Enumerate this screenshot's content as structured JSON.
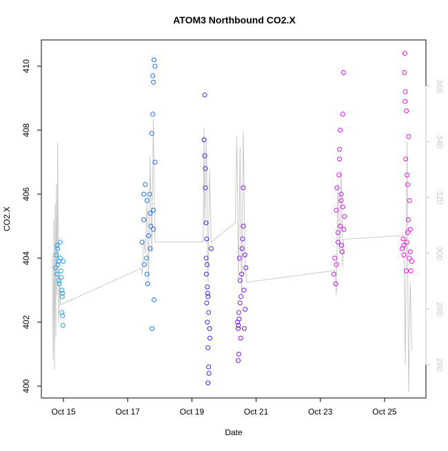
{
  "chart_data": {
    "type": "scatter",
    "title": "ATOM3 Northbound CO2.X",
    "xlabel": "Date",
    "ylabel": "CO2.X",
    "xlim": [
      14.31,
      26.29
    ],
    "ylim": [
      399.63,
      410.82
    ],
    "y2lim": [
      248.1,
      376.5
    ],
    "xticks": [
      {
        "value": 15,
        "label": "Oct 15"
      },
      {
        "value": 17,
        "label": "Oct 17"
      },
      {
        "value": 19,
        "label": "Oct 19"
      },
      {
        "value": 21,
        "label": "Oct 21"
      },
      {
        "value": 23,
        "label": "Oct 23"
      },
      {
        "value": 25,
        "label": "Oct 25"
      }
    ],
    "yticks": [
      400,
      402,
      404,
      406,
      408,
      410
    ],
    "y2ticks": [
      260,
      280,
      300,
      320,
      340,
      360
    ],
    "y2color": "#c8c8c8",
    "series": [
      {
        "color": "#1ea0f0",
        "x": [
          14.75,
          14.78,
          14.8,
          14.82,
          14.85,
          14.87,
          14.9,
          14.92,
          14.95,
          14.97,
          14.8,
          14.83,
          14.86,
          14.9,
          14.93,
          14.96,
          14.99,
          14.95,
          14.97,
          14.98
        ],
        "values": [
          403.7,
          404.1,
          403.5,
          404.3,
          403.9,
          403.2,
          404.5,
          403.6,
          403.0,
          402.9,
          404.4,
          403.8,
          403.3,
          404.0,
          403.4,
          402.8,
          403.9,
          402.3,
          402.2,
          401.9
        ]
      },
      {
        "color": "#1a6cf0",
        "x": [
          17.45,
          17.5,
          17.52,
          17.55,
          17.58,
          17.6,
          17.62,
          17.65,
          17.68,
          17.7,
          17.72,
          17.75,
          17.78,
          17.8,
          17.82,
          17.85,
          17.5,
          17.6,
          17.7,
          17.78,
          17.8,
          17.85,
          17.82,
          17.76,
          17.8
        ],
        "values": [
          404.5,
          405.2,
          403.8,
          406.3,
          404.0,
          405.8,
          403.2,
          404.7,
          406.0,
          404.3,
          405.0,
          407.9,
          408.5,
          404.9,
          410.2,
          410.0,
          406.0,
          403.5,
          405.4,
          409.7,
          409.5,
          407.0,
          402.7,
          401.8,
          405.5
        ]
      },
      {
        "color": "#3a1ef0",
        "x": [
          19.38,
          19.4,
          19.42,
          19.44,
          19.46,
          19.48,
          19.5,
          19.52,
          19.55,
          19.4,
          19.42,
          19.45,
          19.48,
          19.5,
          19.52,
          19.44,
          19.46,
          19.5,
          19.53,
          19.56,
          19.6,
          19.47,
          19.49
        ],
        "values": [
          407.7,
          407.2,
          406.8,
          405.1,
          404.6,
          403.1,
          402.8,
          402.3,
          401.8,
          409.1,
          406.2,
          403.5,
          402.0,
          401.2,
          400.6,
          404.0,
          402.6,
          400.1,
          400.4,
          401.5,
          404.3,
          403.8,
          402.9
        ]
      },
      {
        "color": "#7a10f0",
        "x": [
          20.42,
          20.44,
          20.46,
          20.48,
          20.5,
          20.52,
          20.55,
          20.58,
          20.6,
          20.62,
          20.65,
          20.68,
          20.45,
          20.47,
          20.5,
          20.53,
          20.56,
          20.6,
          20.63,
          20.66,
          20.44,
          20.46
        ],
        "values": [
          402.0,
          401.8,
          402.3,
          404.0,
          402.6,
          401.5,
          403.5,
          404.6,
          405.0,
          403.0,
          404.1,
          403.7,
          401.9,
          402.1,
          403.3,
          402.8,
          404.3,
          406.2,
          401.8,
          402.4,
          400.8,
          401.0
        ]
      },
      {
        "color": "#d010f0",
        "x": [
          23.42,
          23.45,
          23.48,
          23.5,
          23.52,
          23.55,
          23.58,
          23.6,
          23.62,
          23.65,
          23.68,
          23.7,
          23.72,
          23.75,
          23.5,
          23.55,
          23.6,
          23.65,
          23.7,
          23.73,
          23.62,
          23.66
        ],
        "values": [
          403.5,
          404.0,
          403.2,
          405.5,
          406.2,
          404.8,
          406.6,
          407.1,
          405.0,
          405.8,
          404.2,
          408.5,
          409.8,
          405.3,
          403.8,
          404.5,
          407.4,
          406.0,
          405.6,
          404.9,
          408.0,
          404.4
        ]
      },
      {
        "color": "#f010e0",
        "x": [
          25.55,
          25.58,
          25.6,
          25.62,
          25.65,
          25.68,
          25.7,
          25.72,
          25.75,
          25.78,
          25.8,
          25.82,
          25.85,
          25.6,
          25.63,
          25.66,
          25.7,
          25.74,
          25.77,
          25.8,
          25.64,
          25.68,
          25.72
        ],
        "values": [
          404.3,
          404.6,
          404.1,
          409.8,
          409.2,
          408.6,
          404.5,
          406.3,
          407.8,
          405.8,
          404.9,
          403.6,
          403.9,
          404.4,
          410.4,
          407.1,
          406.6,
          405.2,
          404.0,
          404.2,
          408.9,
          403.6,
          404.8
        ]
      },
      {
        "type": "line",
        "axis": "y2",
        "color": "#c8c8c8",
        "x": [
          14.65,
          14.68,
          14.7,
          14.72,
          14.74,
          14.76,
          14.78,
          14.8,
          14.82,
          14.85,
          14.88,
          14.9,
          17.42,
          17.45,
          17.5,
          17.55,
          17.6,
          17.65,
          17.7,
          17.75,
          17.8,
          17.85,
          19.35,
          19.38,
          19.4,
          19.45,
          19.5,
          19.55,
          19.6,
          20.35,
          20.4,
          20.45,
          20.5,
          20.55,
          20.6,
          20.65,
          20.7,
          23.45,
          23.5,
          23.55,
          23.6,
          23.65,
          23.7,
          23.72,
          25.6,
          25.65,
          25.7,
          25.72,
          25.75,
          25.8,
          25.85
        ],
        "values": [
          300,
          262,
          312,
          258,
          318,
          270,
          325,
          285,
          340,
          275,
          292,
          281.5,
          294.6,
          292,
          305,
          300,
          318,
          290,
          335,
          300,
          348,
          304,
          304,
          345,
          310,
          340,
          290,
          330,
          304,
          311,
          342,
          290,
          338,
          285,
          344,
          300,
          289.6,
          293.8,
          285,
          325,
          300,
          330,
          295,
          305,
          306.4,
          260,
          340,
          300,
          250,
          290,
          265
        ]
      }
    ]
  }
}
